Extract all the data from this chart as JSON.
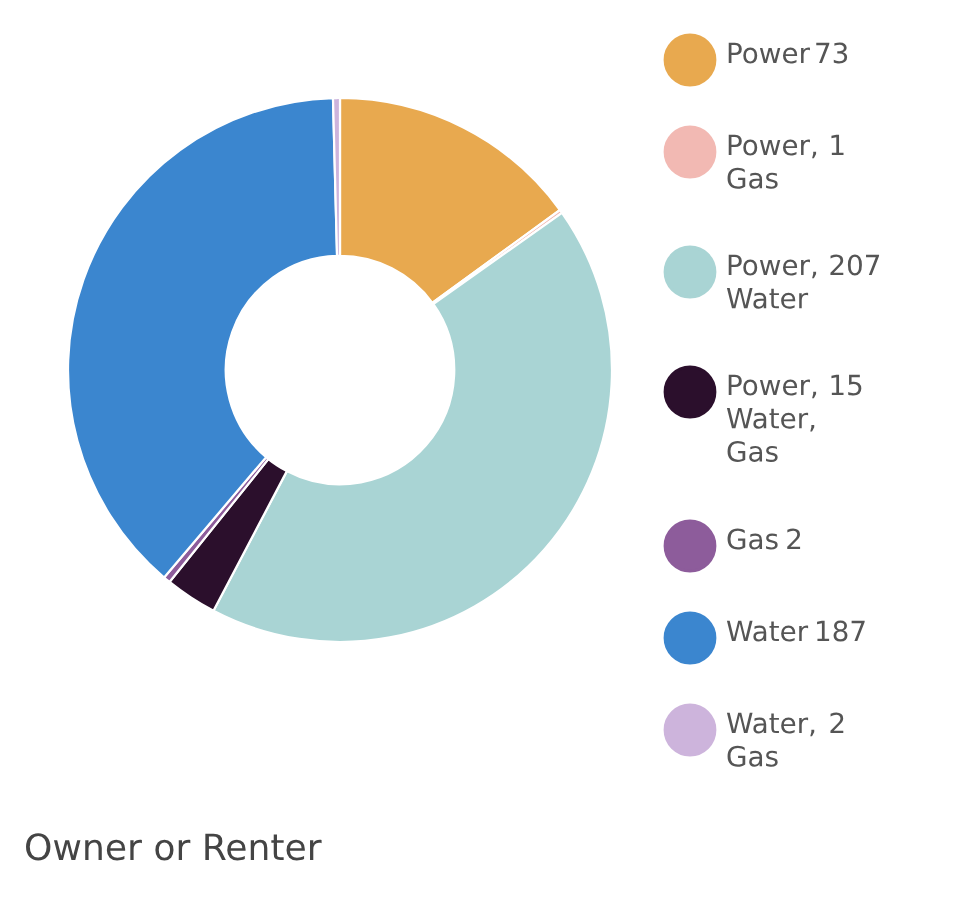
{
  "chart_data": {
    "type": "donut",
    "title": "Owner or Renter",
    "categories": [
      "Power",
      "Power, Gas",
      "Power, Water",
      "Power, Water, Gas",
      "Gas",
      "Water",
      "Water, Gas"
    ],
    "values": [
      73,
      1,
      207,
      15,
      2,
      187,
      2
    ],
    "colors": [
      "#e8a94f",
      "#f2b9b3",
      "#a9d4d4",
      "#2b0f2c",
      "#8d5c9b",
      "#3b86cf",
      "#cdb4dc"
    ],
    "data_labels": true,
    "legend": "right"
  }
}
